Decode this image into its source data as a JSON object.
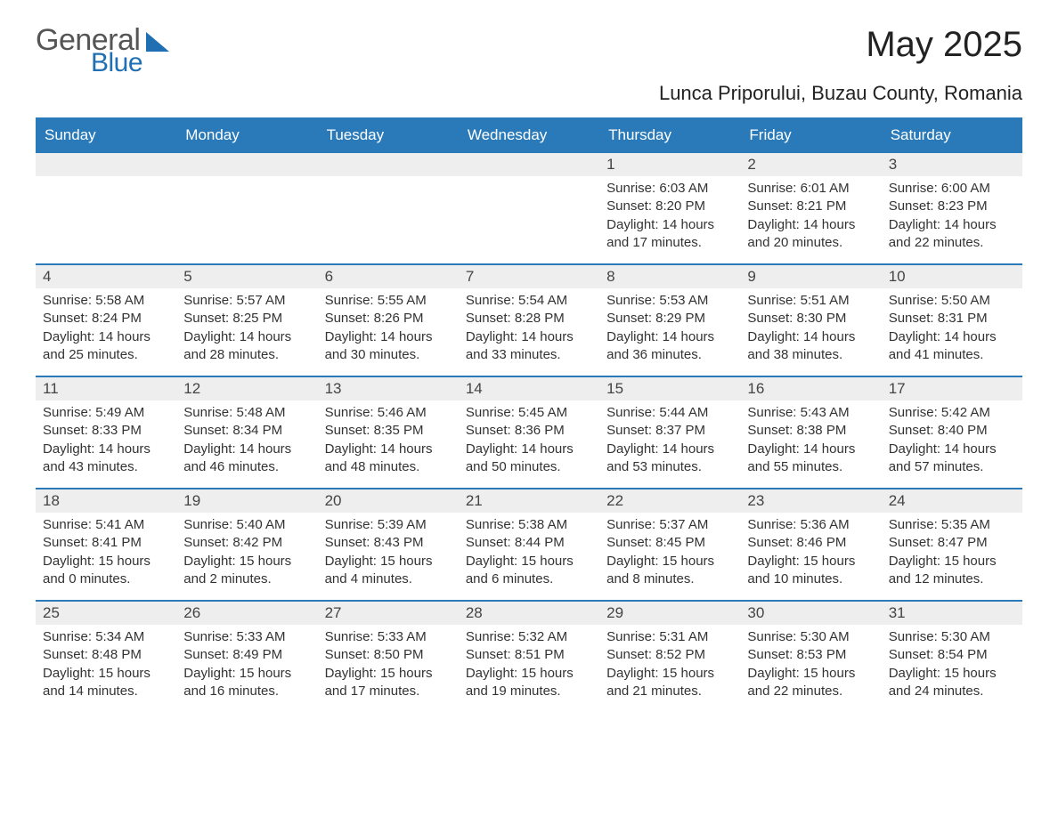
{
  "logo": {
    "general": "General",
    "blue": "Blue",
    "shape_color": "#1f6fb2"
  },
  "title": "May 2025",
  "subtitle": "Lunca Priporului, Buzau County, Romania",
  "colors": {
    "header_bg": "#2a7ab9",
    "header_text": "#ffffff",
    "daynum_bg": "#eeeeee",
    "row_divider": "#2a7ab9",
    "body_text": "#333333",
    "page_bg": "#ffffff"
  },
  "typography": {
    "title_fontsize": 40,
    "subtitle_fontsize": 22,
    "dayhead_fontsize": 17,
    "daynum_fontsize": 17,
    "cell_fontsize": 15,
    "font_family": "Arial"
  },
  "layout": {
    "columns": 7,
    "rows": 5,
    "leading_blanks": 4
  },
  "day_headers": [
    "Sunday",
    "Monday",
    "Tuesday",
    "Wednesday",
    "Thursday",
    "Friday",
    "Saturday"
  ],
  "days": [
    {
      "n": "1",
      "sunrise": "Sunrise: 6:03 AM",
      "sunset": "Sunset: 8:20 PM",
      "daylight": "Daylight: 14 hours and 17 minutes."
    },
    {
      "n": "2",
      "sunrise": "Sunrise: 6:01 AM",
      "sunset": "Sunset: 8:21 PM",
      "daylight": "Daylight: 14 hours and 20 minutes."
    },
    {
      "n": "3",
      "sunrise": "Sunrise: 6:00 AM",
      "sunset": "Sunset: 8:23 PM",
      "daylight": "Daylight: 14 hours and 22 minutes."
    },
    {
      "n": "4",
      "sunrise": "Sunrise: 5:58 AM",
      "sunset": "Sunset: 8:24 PM",
      "daylight": "Daylight: 14 hours and 25 minutes."
    },
    {
      "n": "5",
      "sunrise": "Sunrise: 5:57 AM",
      "sunset": "Sunset: 8:25 PM",
      "daylight": "Daylight: 14 hours and 28 minutes."
    },
    {
      "n": "6",
      "sunrise": "Sunrise: 5:55 AM",
      "sunset": "Sunset: 8:26 PM",
      "daylight": "Daylight: 14 hours and 30 minutes."
    },
    {
      "n": "7",
      "sunrise": "Sunrise: 5:54 AM",
      "sunset": "Sunset: 8:28 PM",
      "daylight": "Daylight: 14 hours and 33 minutes."
    },
    {
      "n": "8",
      "sunrise": "Sunrise: 5:53 AM",
      "sunset": "Sunset: 8:29 PM",
      "daylight": "Daylight: 14 hours and 36 minutes."
    },
    {
      "n": "9",
      "sunrise": "Sunrise: 5:51 AM",
      "sunset": "Sunset: 8:30 PM",
      "daylight": "Daylight: 14 hours and 38 minutes."
    },
    {
      "n": "10",
      "sunrise": "Sunrise: 5:50 AM",
      "sunset": "Sunset: 8:31 PM",
      "daylight": "Daylight: 14 hours and 41 minutes."
    },
    {
      "n": "11",
      "sunrise": "Sunrise: 5:49 AM",
      "sunset": "Sunset: 8:33 PM",
      "daylight": "Daylight: 14 hours and 43 minutes."
    },
    {
      "n": "12",
      "sunrise": "Sunrise: 5:48 AM",
      "sunset": "Sunset: 8:34 PM",
      "daylight": "Daylight: 14 hours and 46 minutes."
    },
    {
      "n": "13",
      "sunrise": "Sunrise: 5:46 AM",
      "sunset": "Sunset: 8:35 PM",
      "daylight": "Daylight: 14 hours and 48 minutes."
    },
    {
      "n": "14",
      "sunrise": "Sunrise: 5:45 AM",
      "sunset": "Sunset: 8:36 PM",
      "daylight": "Daylight: 14 hours and 50 minutes."
    },
    {
      "n": "15",
      "sunrise": "Sunrise: 5:44 AM",
      "sunset": "Sunset: 8:37 PM",
      "daylight": "Daylight: 14 hours and 53 minutes."
    },
    {
      "n": "16",
      "sunrise": "Sunrise: 5:43 AM",
      "sunset": "Sunset: 8:38 PM",
      "daylight": "Daylight: 14 hours and 55 minutes."
    },
    {
      "n": "17",
      "sunrise": "Sunrise: 5:42 AM",
      "sunset": "Sunset: 8:40 PM",
      "daylight": "Daylight: 14 hours and 57 minutes."
    },
    {
      "n": "18",
      "sunrise": "Sunrise: 5:41 AM",
      "sunset": "Sunset: 8:41 PM",
      "daylight": "Daylight: 15 hours and 0 minutes."
    },
    {
      "n": "19",
      "sunrise": "Sunrise: 5:40 AM",
      "sunset": "Sunset: 8:42 PM",
      "daylight": "Daylight: 15 hours and 2 minutes."
    },
    {
      "n": "20",
      "sunrise": "Sunrise: 5:39 AM",
      "sunset": "Sunset: 8:43 PM",
      "daylight": "Daylight: 15 hours and 4 minutes."
    },
    {
      "n": "21",
      "sunrise": "Sunrise: 5:38 AM",
      "sunset": "Sunset: 8:44 PM",
      "daylight": "Daylight: 15 hours and 6 minutes."
    },
    {
      "n": "22",
      "sunrise": "Sunrise: 5:37 AM",
      "sunset": "Sunset: 8:45 PM",
      "daylight": "Daylight: 15 hours and 8 minutes."
    },
    {
      "n": "23",
      "sunrise": "Sunrise: 5:36 AM",
      "sunset": "Sunset: 8:46 PM",
      "daylight": "Daylight: 15 hours and 10 minutes."
    },
    {
      "n": "24",
      "sunrise": "Sunrise: 5:35 AM",
      "sunset": "Sunset: 8:47 PM",
      "daylight": "Daylight: 15 hours and 12 minutes."
    },
    {
      "n": "25",
      "sunrise": "Sunrise: 5:34 AM",
      "sunset": "Sunset: 8:48 PM",
      "daylight": "Daylight: 15 hours and 14 minutes."
    },
    {
      "n": "26",
      "sunrise": "Sunrise: 5:33 AM",
      "sunset": "Sunset: 8:49 PM",
      "daylight": "Daylight: 15 hours and 16 minutes."
    },
    {
      "n": "27",
      "sunrise": "Sunrise: 5:33 AM",
      "sunset": "Sunset: 8:50 PM",
      "daylight": "Daylight: 15 hours and 17 minutes."
    },
    {
      "n": "28",
      "sunrise": "Sunrise: 5:32 AM",
      "sunset": "Sunset: 8:51 PM",
      "daylight": "Daylight: 15 hours and 19 minutes."
    },
    {
      "n": "29",
      "sunrise": "Sunrise: 5:31 AM",
      "sunset": "Sunset: 8:52 PM",
      "daylight": "Daylight: 15 hours and 21 minutes."
    },
    {
      "n": "30",
      "sunrise": "Sunrise: 5:30 AM",
      "sunset": "Sunset: 8:53 PM",
      "daylight": "Daylight: 15 hours and 22 minutes."
    },
    {
      "n": "31",
      "sunrise": "Sunrise: 5:30 AM",
      "sunset": "Sunset: 8:54 PM",
      "daylight": "Daylight: 15 hours and 24 minutes."
    }
  ]
}
